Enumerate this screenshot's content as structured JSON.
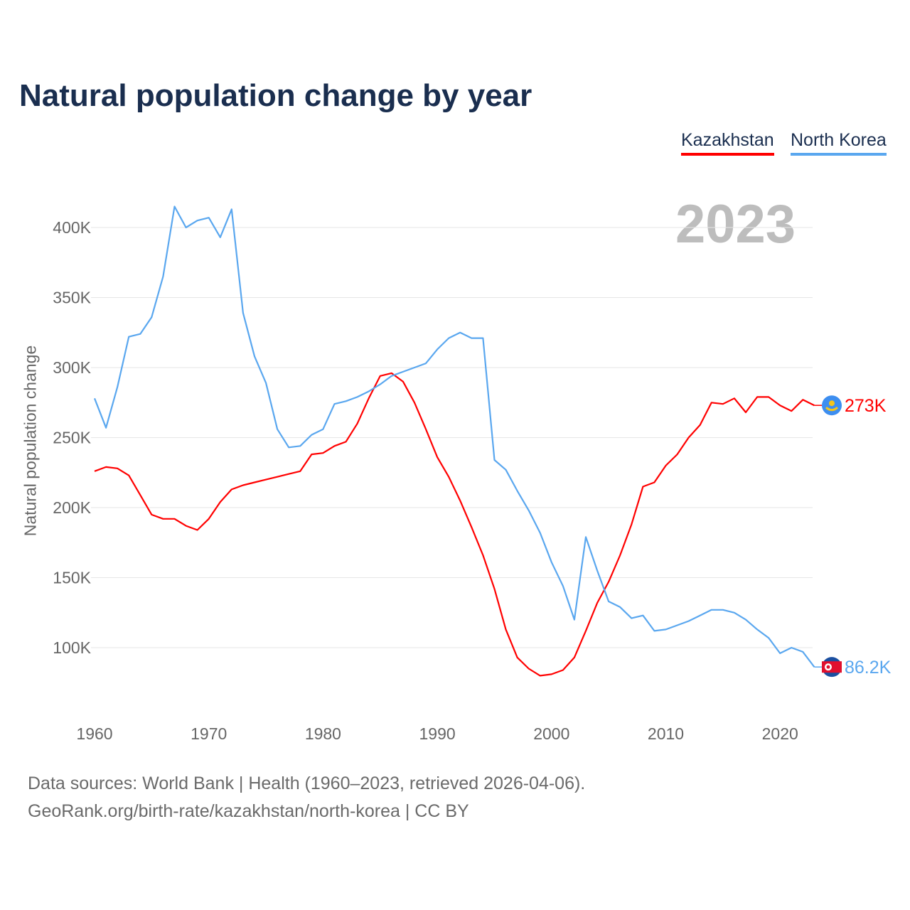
{
  "title": "Natural population change by year",
  "legend": {
    "kz": "Kazakhstan",
    "nk": "North Korea"
  },
  "year_label": "2023",
  "end_labels": {
    "kz": "273K",
    "nk": "86.2K"
  },
  "source": {
    "line1": "Data sources: World Bank | Health (1960–2023, retrieved 2026-04-06).",
    "line2": "GeoRank.org/birth-rate/kazakhstan/north-korea | CC BY"
  },
  "chart_data": {
    "type": "line",
    "title": "Natural population change by year",
    "xlabel": "",
    "ylabel": "Natural population change",
    "xlim": [
      1960,
      2023
    ],
    "ylim": [
      60000,
      420000
    ],
    "x_ticks": [
      1960,
      1970,
      1980,
      1990,
      2000,
      2010,
      2020
    ],
    "y_ticks": [
      {
        "v": 100000,
        "label": "100K"
      },
      {
        "v": 150000,
        "label": "150K"
      },
      {
        "v": 200000,
        "label": "200K"
      },
      {
        "v": 250000,
        "label": "250K"
      },
      {
        "v": 300000,
        "label": "300K"
      },
      {
        "v": 350000,
        "label": "350K"
      },
      {
        "v": 400000,
        "label": "400K"
      }
    ],
    "grid": true,
    "legend_position": "top-right",
    "x_start": 1960,
    "series": [
      {
        "name": "Kazakhstan",
        "color": "#ff0000",
        "values": [
          226,
          229,
          228,
          223,
          209,
          195,
          192,
          192,
          187,
          184,
          192,
          204,
          213,
          216,
          218,
          220,
          222,
          224,
          226,
          238,
          239,
          244,
          247,
          260,
          278,
          294,
          296,
          290,
          275,
          256,
          236,
          222,
          205,
          186,
          166,
          142,
          113,
          93,
          85,
          80,
          81,
          84,
          93,
          112,
          132,
          147,
          166,
          188,
          215,
          218,
          230,
          238,
          250,
          259,
          275,
          274,
          278,
          268,
          279,
          279,
          273,
          269,
          277,
          273
        ]
      },
      {
        "name": "North Korea",
        "color": "#5aa7ef",
        "values": [
          278,
          257,
          286,
          322,
          324,
          336,
          365,
          415,
          400,
          405,
          407,
          393,
          413,
          339,
          308,
          289,
          256,
          243,
          244,
          252,
          256,
          274,
          276,
          279,
          283,
          288,
          294,
          297,
          300,
          303,
          313,
          321,
          325,
          321,
          321,
          234,
          227,
          212,
          198,
          182,
          161,
          144,
          120,
          179,
          155,
          133,
          129,
          121,
          123,
          112,
          113,
          116,
          119,
          123,
          127,
          127,
          125,
          120,
          113,
          107,
          96,
          100,
          97,
          86.2
        ]
      }
    ],
    "value_unit": "thousands"
  }
}
